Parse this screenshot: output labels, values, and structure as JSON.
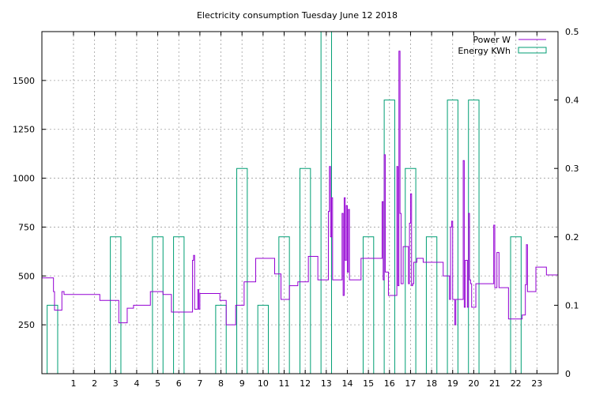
{
  "chart_data": {
    "type": "line",
    "title": "Electricity consumption Tuesday June 12 2018",
    "x_ticks": [
      "1",
      "2",
      "3",
      "4",
      "5",
      "6",
      "7",
      "8",
      "9",
      "10",
      "11",
      "12",
      "13",
      "14",
      "15",
      "16",
      "17",
      "18",
      "19",
      "20",
      "21",
      "22",
      "23"
    ],
    "xlim": [
      -0.5,
      24
    ],
    "y_left": {
      "ticks": [
        "250",
        "500",
        "750",
        "1000",
        "1250",
        "1500"
      ],
      "lim": [
        0,
        1750
      ]
    },
    "y_right": {
      "ticks": [
        "0",
        "0.1",
        "0.2",
        "0.3",
        "0.4",
        "0.5"
      ],
      "lim": [
        0,
        0.5
      ]
    },
    "grid": true,
    "legend_placement": "top-right",
    "series": [
      {
        "name": "Power W",
        "axis": "left",
        "color": "#9400d3",
        "style": "steps",
        "points": [
          [
            -0.5,
            490
          ],
          [
            0,
            490
          ],
          [
            0.05,
            420
          ],
          [
            0.1,
            325
          ],
          [
            0.4,
            325
          ],
          [
            0.45,
            420
          ],
          [
            0.55,
            405
          ],
          [
            1,
            405
          ],
          [
            1.5,
            405
          ],
          [
            2,
            405
          ],
          [
            2.25,
            375
          ],
          [
            3.1,
            375
          ],
          [
            3.15,
            260
          ],
          [
            3.5,
            260
          ],
          [
            3.55,
            335
          ],
          [
            3.8,
            335
          ],
          [
            3.85,
            350
          ],
          [
            4.6,
            350
          ],
          [
            4.65,
            420
          ],
          [
            5.2,
            420
          ],
          [
            5.25,
            405
          ],
          [
            5.6,
            405
          ],
          [
            5.65,
            315
          ],
          [
            6.6,
            315
          ],
          [
            6.65,
            580
          ],
          [
            6.7,
            605
          ],
          [
            6.75,
            330
          ],
          [
            6.85,
            330
          ],
          [
            6.9,
            430
          ],
          [
            6.95,
            330
          ],
          [
            7,
            410
          ],
          [
            7.9,
            410
          ],
          [
            7.95,
            375
          ],
          [
            8.2,
            375
          ],
          [
            8.25,
            250
          ],
          [
            8.65,
            250
          ],
          [
            8.7,
            350
          ],
          [
            9.05,
            350
          ],
          [
            9.1,
            470
          ],
          [
            9.6,
            470
          ],
          [
            9.65,
            590
          ],
          [
            10.5,
            590
          ],
          [
            10.55,
            510
          ],
          [
            10.8,
            510
          ],
          [
            10.85,
            380
          ],
          [
            11.2,
            380
          ],
          [
            11.25,
            450
          ],
          [
            11.6,
            450
          ],
          [
            11.65,
            470
          ],
          [
            12.1,
            470
          ],
          [
            12.15,
            600
          ],
          [
            12.55,
            600
          ],
          [
            12.6,
            480
          ],
          [
            13.05,
            480
          ],
          [
            13.1,
            830
          ],
          [
            13.15,
            1060
          ],
          [
            13.2,
            700
          ],
          [
            13.25,
            900
          ],
          [
            13.3,
            480
          ],
          [
            13.7,
            480
          ],
          [
            13.75,
            820
          ],
          [
            13.8,
            400
          ],
          [
            13.85,
            900
          ],
          [
            13.9,
            580
          ],
          [
            13.95,
            860
          ],
          [
            14,
            520
          ],
          [
            14.05,
            840
          ],
          [
            14.1,
            480
          ],
          [
            14.6,
            480
          ],
          [
            14.65,
            590
          ],
          [
            15.6,
            590
          ],
          [
            15.65,
            880
          ],
          [
            15.7,
            480
          ],
          [
            15.75,
            1120
          ],
          [
            15.8,
            520
          ],
          [
            15.9,
            520
          ],
          [
            15.95,
            400
          ],
          [
            16.3,
            400
          ],
          [
            16.35,
            1060
          ],
          [
            16.4,
            450
          ],
          [
            16.45,
            1650
          ],
          [
            16.5,
            820
          ],
          [
            16.55,
            460
          ],
          [
            16.6,
            460
          ],
          [
            16.65,
            650
          ],
          [
            16.9,
            460
          ],
          [
            16.95,
            770
          ],
          [
            17,
            920
          ],
          [
            17.05,
            450
          ],
          [
            17.1,
            460
          ],
          [
            17.15,
            570
          ],
          [
            17.3,
            590
          ],
          [
            17.55,
            590
          ],
          [
            17.6,
            570
          ],
          [
            18.5,
            570
          ],
          [
            18.55,
            500
          ],
          [
            18.8,
            500
          ],
          [
            18.85,
            380
          ],
          [
            18.9,
            750
          ],
          [
            18.95,
            780
          ],
          [
            19,
            380
          ],
          [
            19.05,
            380
          ],
          [
            19.1,
            250
          ],
          [
            19.15,
            380
          ],
          [
            19.45,
            380
          ],
          [
            19.5,
            1090
          ],
          [
            19.55,
            340
          ],
          [
            19.6,
            580
          ],
          [
            19.7,
            340
          ],
          [
            19.75,
            820
          ],
          [
            19.8,
            480
          ],
          [
            19.85,
            460
          ],
          [
            19.9,
            340
          ],
          [
            20.05,
            340
          ],
          [
            20.1,
            460
          ],
          [
            20.9,
            460
          ],
          [
            20.95,
            760
          ],
          [
            21,
            440
          ],
          [
            21.1,
            620
          ],
          [
            21.2,
            440
          ],
          [
            21.6,
            440
          ],
          [
            21.65,
            280
          ],
          [
            22.25,
            280
          ],
          [
            22.3,
            300
          ],
          [
            22.4,
            300
          ],
          [
            22.45,
            455
          ],
          [
            22.5,
            660
          ],
          [
            22.55,
            420
          ],
          [
            22.9,
            420
          ],
          [
            22.95,
            545
          ],
          [
            23.4,
            545
          ],
          [
            23.45,
            505
          ],
          [
            24,
            505
          ]
        ]
      },
      {
        "name": "Energy KWh",
        "axis": "right",
        "color": "#009e73",
        "style": "bars",
        "bars": [
          [
            0,
            0.1
          ],
          [
            1,
            0
          ],
          [
            2,
            0
          ],
          [
            3,
            0.2
          ],
          [
            4,
            0
          ],
          [
            5,
            0.2
          ],
          [
            6,
            0.2
          ],
          [
            7,
            0
          ],
          [
            8,
            0.1
          ],
          [
            9,
            0.3
          ],
          [
            10,
            0.1
          ],
          [
            11,
            0.2
          ],
          [
            12,
            0.3
          ],
          [
            13,
            0.5
          ],
          [
            14,
            0
          ],
          [
            15,
            0.2
          ],
          [
            16,
            0.4
          ],
          [
            17,
            0.3
          ],
          [
            18,
            0.2
          ],
          [
            19,
            0.4
          ],
          [
            20,
            0.4
          ],
          [
            21,
            0
          ],
          [
            22,
            0.2
          ],
          [
            23,
            0
          ]
        ]
      }
    ]
  }
}
